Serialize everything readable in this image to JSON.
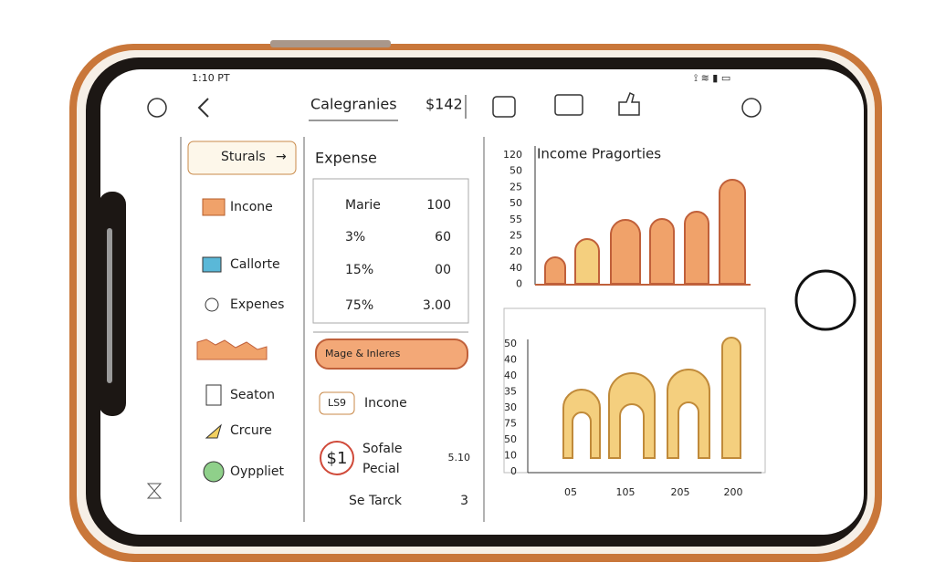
{
  "status_bar": {
    "time": "1:10 PT"
  },
  "header": {
    "title": "Calegranies",
    "amount": "$142"
  },
  "sidebar": {
    "items": [
      "Sturals",
      "Incone",
      "Callorte",
      "Expenes",
      "Seaton",
      "Crcure",
      "Oyppliet"
    ]
  },
  "expense": {
    "title": "Expense",
    "rows": [
      [
        "Marie",
        "100"
      ],
      [
        "3%",
        "60"
      ],
      [
        "15%",
        "00"
      ],
      [
        "75%",
        "3.00"
      ]
    ],
    "button": "Mage & Inleres",
    "tag": "LS9",
    "tag_label": "Incone",
    "coin": "$1",
    "coin_label": [
      "Sofale",
      "Pecial"
    ],
    "coin_value": "5.10",
    "footer": [
      "Se Tarck",
      "3"
    ]
  },
  "chart1": {
    "title": "Income Pragorties",
    "axis_labels": [
      "120",
      "50",
      "25",
      "50",
      "55",
      "25",
      "20",
      "40",
      "0"
    ]
  },
  "chart2": {
    "axis_labels": [
      "50",
      "40",
      "40",
      "35",
      "30",
      "75",
      "50",
      "10",
      "0"
    ],
    "x_labels": [
      "05",
      "105",
      "205",
      "200"
    ]
  }
}
